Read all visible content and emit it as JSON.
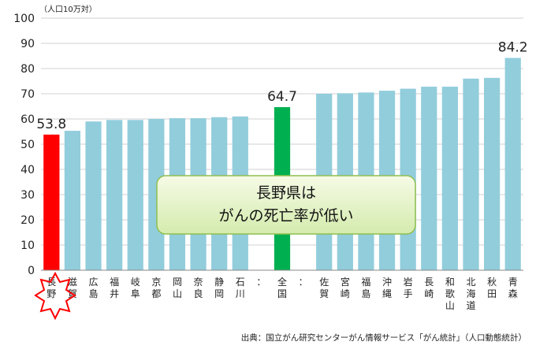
{
  "chart_data": {
    "type": "bar",
    "unit_label": "（人口10万対）",
    "ylim": [
      0,
      100
    ],
    "yticks": [
      0,
      10,
      20,
      30,
      40,
      50,
      60,
      70,
      80,
      90,
      100
    ],
    "grid": true,
    "categories": [
      "長野",
      "滋賀",
      "広島",
      "福井",
      "岐阜",
      "京都",
      "岡山",
      "奈良",
      "静岡",
      "石川",
      "：",
      "全国",
      "：",
      "佐賀",
      "宮崎",
      "福島",
      "沖縄",
      "岩手",
      "長崎",
      "和歌山",
      "北海道",
      "秋田",
      "青森"
    ],
    "values": [
      53.8,
      55.3,
      59.0,
      59.6,
      59.6,
      60.0,
      60.3,
      60.3,
      60.7,
      61.0,
      null,
      64.7,
      null,
      70.0,
      70.2,
      70.5,
      71.2,
      72.0,
      72.8,
      72.8,
      76.0,
      76.3,
      84.2
    ],
    "bar_colors": [
      "#ff0000",
      "#92cddc",
      "#92cddc",
      "#92cddc",
      "#92cddc",
      "#92cddc",
      "#92cddc",
      "#92cddc",
      "#92cddc",
      "#92cddc",
      null,
      "#00b050",
      null,
      "#92cddc",
      "#92cddc",
      "#92cddc",
      "#92cddc",
      "#92cddc",
      "#92cddc",
      "#92cddc",
      "#92cddc",
      "#92cddc",
      "#92cddc"
    ],
    "value_labels": {
      "0": "53.8",
      "11": "64.7",
      "22": "84.2"
    },
    "callout": [
      "長野県は",
      "がんの死亡率が低い"
    ],
    "source": "出典：国立がん研究センターがん情報サービス「がん統計」（人口動態統計）"
  }
}
